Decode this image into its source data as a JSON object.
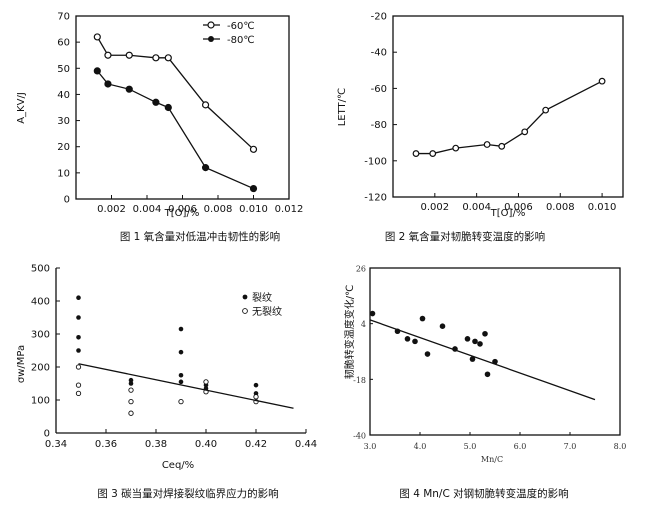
{
  "chart_data": [
    {
      "id": "c1",
      "type": "line",
      "ylabel": "A_KV/J",
      "xlabel": "T[O]/%",
      "caption": "图 1  氧含量对低温冲击韧性的影响",
      "xlim": [
        0,
        0.012
      ],
      "ylim": [
        0,
        70
      ],
      "x_ticks": [
        "0.002",
        "0.004",
        "0.006",
        "0.008",
        "0.010",
        "0.012"
      ],
      "y_ticks": [
        "0",
        "10",
        "20",
        "30",
        "40",
        "50",
        "60",
        "70"
      ],
      "series": [
        {
          "name": "-60℃",
          "marker": "open",
          "x": [
            0.0012,
            0.0018,
            0.003,
            0.0045,
            0.0052,
            0.0073,
            0.01
          ],
          "y": [
            62,
            55,
            55,
            54,
            54,
            36,
            19
          ]
        },
        {
          "name": "-80℃",
          "marker": "filled",
          "x": [
            0.0012,
            0.0018,
            0.003,
            0.0045,
            0.0052,
            0.0073,
            0.01
          ],
          "y": [
            49,
            44,
            42,
            37,
            35,
            12,
            4
          ]
        }
      ]
    },
    {
      "id": "c2",
      "type": "line",
      "ylabel": "LETT/℃",
      "xlabel": "T[O]/%",
      "caption": "图 2  氧含量对韧脆转变温度的影响",
      "xlim": [
        0,
        0.011
      ],
      "ylim": [
        -120,
        -20
      ],
      "x_ticks": [
        "0.002",
        "0.004",
        "0.006",
        "0.008",
        "0.010"
      ],
      "y_ticks": [
        "-20",
        "-40",
        "-60",
        "-80",
        "-100",
        "-120"
      ],
      "series": [
        {
          "name": "LETT",
          "marker": "open",
          "x": [
            0.0011,
            0.0019,
            0.003,
            0.0045,
            0.0052,
            0.0063,
            0.0073,
            0.01
          ],
          "y": [
            -96,
            -96,
            -93,
            -91,
            -92,
            -84,
            -72,
            -56
          ]
        }
      ]
    },
    {
      "id": "c3",
      "type": "scatter",
      "ylabel": "σw/MPa",
      "xlabel": "Ceq/%",
      "caption": "图 3  碳当量对焊接裂纹临界应力的影响",
      "xlim": [
        0.34,
        0.44
      ],
      "ylim": [
        0,
        500
      ],
      "x_ticks": [
        "0.34",
        "0.36",
        "0.38",
        "0.40",
        "0.42",
        "0.44"
      ],
      "y_ticks": [
        "0",
        "100",
        "200",
        "300",
        "400",
        "500"
      ],
      "legend": [
        "裂纹",
        "无裂纹"
      ],
      "cracked": {
        "x": [
          0.349,
          0.349,
          0.349,
          0.349,
          0.37,
          0.37,
          0.39,
          0.39,
          0.39,
          0.39,
          0.4,
          0.4,
          0.42,
          0.42
        ],
        "y": [
          410,
          350,
          290,
          250,
          160,
          150,
          315,
          245,
          175,
          155,
          145,
          135,
          145,
          120
        ]
      },
      "uncracked": {
        "x": [
          0.349,
          0.349,
          0.349,
          0.37,
          0.37,
          0.37,
          0.39,
          0.4,
          0.4,
          0.42,
          0.42
        ],
        "y": [
          200,
          145,
          120,
          130,
          95,
          60,
          95,
          155,
          125,
          110,
          95
        ]
      },
      "fit": {
        "x": [
          0.349,
          0.435
        ],
        "y": [
          210,
          75
        ]
      }
    },
    {
      "id": "c4",
      "type": "scatter",
      "ylabel": "韧脆转变温度变化/℃",
      "xlabel": "Mn/C",
      "caption": "图 4 Mn/C 对钢韧脆转变温度的影响",
      "xlim": [
        3.0,
        8.0
      ],
      "ylim": [
        -40,
        26
      ],
      "x_ticks": [
        "3.0",
        "4.0",
        "5.0",
        "6.0",
        "7.0",
        "8.0"
      ],
      "y_ticks": [
        "26",
        "4",
        "-18",
        "-40"
      ],
      "points": {
        "x": [
          3.05,
          3.55,
          3.75,
          3.9,
          4.05,
          4.15,
          4.45,
          4.7,
          4.95,
          5.05,
          5.1,
          5.2,
          5.3,
          5.35,
          5.5
        ],
        "y": [
          8,
          1,
          -2,
          -3,
          6,
          -8,
          3,
          -6,
          -2,
          -10,
          -3,
          -4,
          0,
          -16,
          -11
        ]
      },
      "fit": {
        "x": [
          3.0,
          7.5
        ],
        "y": [
          5.5,
          -26
        ]
      }
    }
  ]
}
